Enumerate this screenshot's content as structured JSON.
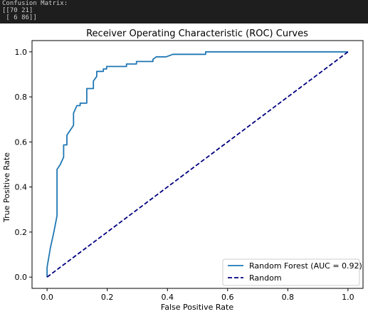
{
  "console": {
    "lines": [
      "Confusion Matrix:",
      "[[70 21]",
      " [ 6 86]]"
    ]
  },
  "chart_data": {
    "type": "line",
    "title": "Receiver Operating Characteristic (ROC) Curves",
    "xlabel": "False Positive Rate",
    "ylabel": "True Positive Rate",
    "xlim": [
      -0.05,
      1.05
    ],
    "ylim": [
      -0.05,
      1.05
    ],
    "x_ticks": [
      "0.0",
      "0.2",
      "0.4",
      "0.6",
      "0.8",
      "1.0"
    ],
    "y_ticks": [
      "0.0",
      "0.2",
      "0.4",
      "0.6",
      "0.8",
      "1.0"
    ],
    "grid": false,
    "legend_position": "lower-right",
    "series": [
      {
        "name": "Random Forest (AUC = 0.92)",
        "color": "#1f77b4",
        "style": "solid",
        "x": [
          0.0,
          0.0,
          0.0,
          0.011,
          0.022,
          0.033,
          0.033,
          0.044,
          0.055,
          0.055,
          0.066,
          0.066,
          0.077,
          0.088,
          0.088,
          0.099,
          0.099,
          0.11,
          0.11,
          0.132,
          0.132,
          0.154,
          0.154,
          0.165,
          0.165,
          0.187,
          0.187,
          0.198,
          0.198,
          0.22,
          0.22,
          0.264,
          0.264,
          0.297,
          0.297,
          0.352,
          0.352,
          0.363,
          0.363,
          0.396,
          0.396,
          0.418,
          0.418,
          0.527,
          0.527,
          1.0
        ],
        "y": [
          0.0,
          0.022,
          0.043,
          0.13,
          0.196,
          0.272,
          0.478,
          0.5,
          0.533,
          0.587,
          0.587,
          0.63,
          0.652,
          0.674,
          0.728,
          0.761,
          0.761,
          0.761,
          0.772,
          0.772,
          0.837,
          0.837,
          0.87,
          0.891,
          0.913,
          0.913,
          0.924,
          0.924,
          0.935,
          0.935,
          0.935,
          0.935,
          0.946,
          0.946,
          0.957,
          0.957,
          0.967,
          0.978,
          0.978,
          0.978,
          0.978,
          0.989,
          0.989,
          0.989,
          1.0,
          1.0
        ]
      },
      {
        "name": "Random",
        "color": "#000080",
        "style": "dashed",
        "x": [
          0.0,
          1.0
        ],
        "y": [
          0.0,
          1.0
        ]
      }
    ]
  }
}
